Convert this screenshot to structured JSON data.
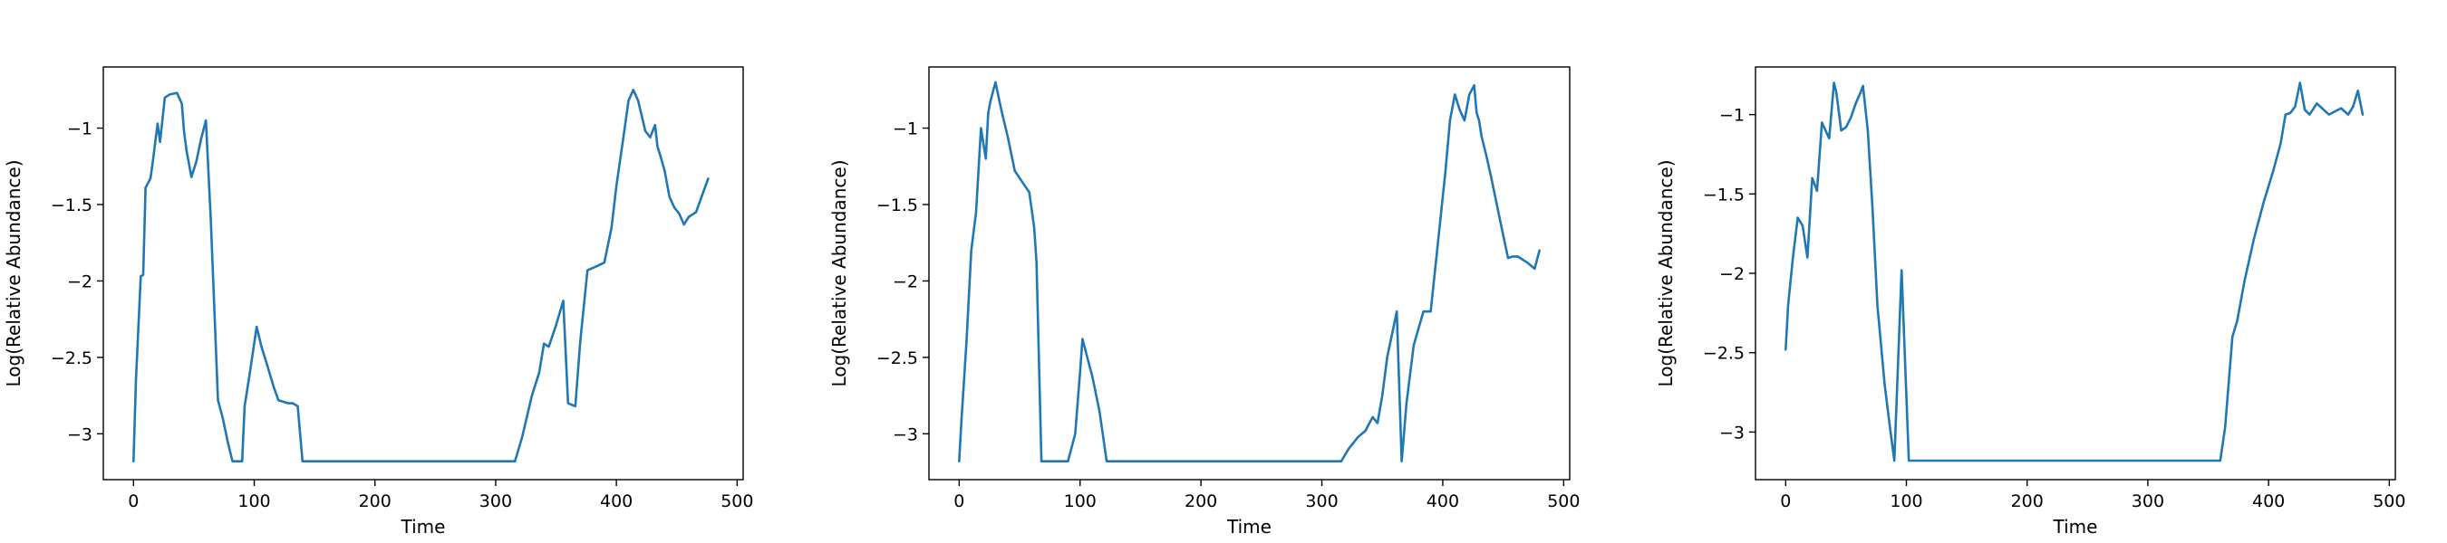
{
  "chart_data": [
    {
      "type": "line",
      "xlabel": "Time",
      "ylabel": "Log(Relative Abundance)",
      "xlim": [
        -25,
        505
      ],
      "ylim": [
        -3.3,
        -0.6
      ],
      "xticks": [
        0,
        100,
        200,
        300,
        400,
        500
      ],
      "yticks": [
        -3.0,
        -2.5,
        -2.0,
        -1.5,
        -1.0
      ],
      "color": "#1f77b4",
      "series": [
        {
          "x": [
            0,
            2,
            6,
            8,
            10,
            14,
            16,
            20,
            22,
            26,
            30,
            36,
            40,
            42,
            44,
            48,
            52,
            56,
            60,
            64,
            70,
            74,
            78,
            82,
            86,
            90,
            92,
            96,
            102,
            106,
            110,
            116,
            120,
            124,
            128,
            132,
            136,
            140,
            144,
            150,
            200,
            250,
            300,
            316,
            322,
            330,
            336,
            340,
            344,
            350,
            356,
            360,
            366,
            370,
            376,
            382,
            390,
            396,
            400,
            406,
            410,
            414,
            418,
            424,
            428,
            432,
            434,
            436,
            440,
            444,
            448,
            452,
            456,
            460,
            466,
            476
          ],
          "y": [
            -3.18,
            -2.65,
            -1.97,
            -1.96,
            -1.39,
            -1.33,
            -1.22,
            -0.97,
            -1.09,
            -0.8,
            -0.78,
            -0.77,
            -0.84,
            -1.03,
            -1.15,
            -1.32,
            -1.22,
            -1.07,
            -0.95,
            -1.6,
            -2.78,
            -2.9,
            -3.05,
            -3.18,
            -3.18,
            -3.18,
            -2.82,
            -2.62,
            -2.3,
            -2.43,
            -2.53,
            -2.69,
            -2.78,
            -2.79,
            -2.8,
            -2.8,
            -2.82,
            -3.18,
            -3.18,
            -3.18,
            -3.18,
            -3.18,
            -3.18,
            -3.18,
            -3.02,
            -2.75,
            -2.6,
            -2.41,
            -2.43,
            -2.29,
            -2.13,
            -2.8,
            -2.82,
            -2.4,
            -1.93,
            -1.91,
            -1.88,
            -1.65,
            -1.38,
            -1.05,
            -0.82,
            -0.75,
            -0.82,
            -1.02,
            -1.06,
            -0.98,
            -1.12,
            -1.17,
            -1.28,
            -1.45,
            -1.52,
            -1.56,
            -1.63,
            -1.58,
            -1.55,
            -1.33
          ]
        }
      ]
    },
    {
      "type": "line",
      "xlabel": "Time",
      "ylabel": "Log(Relative Abundance)",
      "xlim": [
        -25,
        505
      ],
      "ylim": [
        -3.3,
        -0.6
      ],
      "xticks": [
        0,
        100,
        200,
        300,
        400,
        500
      ],
      "yticks": [
        -3.0,
        -2.5,
        -2.0,
        -1.5,
        -1.0
      ],
      "color": "#1f77b4",
      "series": [
        {
          "x": [
            0,
            2,
            6,
            10,
            14,
            18,
            22,
            24,
            26,
            30,
            34,
            36,
            40,
            46,
            52,
            58,
            62,
            64,
            68,
            72,
            76,
            80,
            84,
            90,
            96,
            100,
            102,
            106,
            110,
            116,
            122,
            126,
            150,
            200,
            250,
            300,
            316,
            322,
            330,
            336,
            342,
            346,
            350,
            354,
            358,
            362,
            366,
            370,
            376,
            384,
            390,
            396,
            402,
            406,
            410,
            414,
            418,
            422,
            426,
            428,
            430,
            432,
            436,
            440,
            446,
            450,
            454,
            458,
            462,
            470,
            476,
            480
          ],
          "y": [
            -3.18,
            -2.9,
            -2.4,
            -1.8,
            -1.55,
            -1.0,
            -1.2,
            -0.9,
            -0.82,
            -0.7,
            -0.85,
            -0.92,
            -1.05,
            -1.28,
            -1.35,
            -1.42,
            -1.65,
            -1.88,
            -3.18,
            -3.18,
            -3.18,
            -3.18,
            -3.18,
            -3.18,
            -3.0,
            -2.6,
            -2.38,
            -2.5,
            -2.62,
            -2.85,
            -3.18,
            -3.18,
            -3.18,
            -3.18,
            -3.18,
            -3.18,
            -3.18,
            -3.1,
            -3.02,
            -2.98,
            -2.89,
            -2.93,
            -2.75,
            -2.5,
            -2.35,
            -2.2,
            -3.18,
            -2.8,
            -2.42,
            -2.2,
            -2.2,
            -1.75,
            -1.3,
            -0.95,
            -0.78,
            -0.88,
            -0.95,
            -0.78,
            -0.72,
            -0.9,
            -0.95,
            -1.05,
            -1.18,
            -1.32,
            -1.55,
            -1.7,
            -1.85,
            -1.84,
            -1.84,
            -1.88,
            -1.92,
            -1.8
          ]
        }
      ]
    },
    {
      "type": "line",
      "xlabel": "Time",
      "ylabel": "Log(Relative Abundance)",
      "xlim": [
        -25,
        505
      ],
      "ylim": [
        -3.3,
        -0.7
      ],
      "xticks": [
        0,
        100,
        200,
        300,
        400,
        500
      ],
      "yticks": [
        -3.0,
        -2.5,
        -2.0,
        -1.5,
        -1.0
      ],
      "color": "#1f77b4",
      "series": [
        {
          "x": [
            0,
            2,
            6,
            10,
            14,
            18,
            22,
            26,
            30,
            36,
            40,
            42,
            46,
            50,
            54,
            58,
            62,
            64,
            68,
            72,
            76,
            82,
            86,
            90,
            96,
            102,
            150,
            200,
            250,
            300,
            360,
            364,
            370,
            374,
            380,
            388,
            396,
            404,
            410,
            414,
            418,
            422,
            426,
            430,
            434,
            440,
            450,
            460,
            466,
            470,
            474,
            478
          ],
          "y": [
            -2.48,
            -2.2,
            -1.9,
            -1.65,
            -1.7,
            -1.9,
            -1.4,
            -1.48,
            -1.05,
            -1.15,
            -0.8,
            -0.86,
            -1.1,
            -1.08,
            -1.02,
            -0.93,
            -0.86,
            -0.82,
            -1.1,
            -1.6,
            -2.2,
            -2.7,
            -2.95,
            -3.18,
            -1.98,
            -3.18,
            -3.18,
            -3.18,
            -3.18,
            -3.18,
            -3.18,
            -2.97,
            -2.4,
            -2.3,
            -2.05,
            -1.78,
            -1.55,
            -1.35,
            -1.18,
            -1.0,
            -0.99,
            -0.95,
            -0.8,
            -0.97,
            -1.0,
            -0.93,
            -1.0,
            -0.96,
            -1.0,
            -0.95,
            -0.85,
            -1.0
          ]
        }
      ]
    }
  ]
}
